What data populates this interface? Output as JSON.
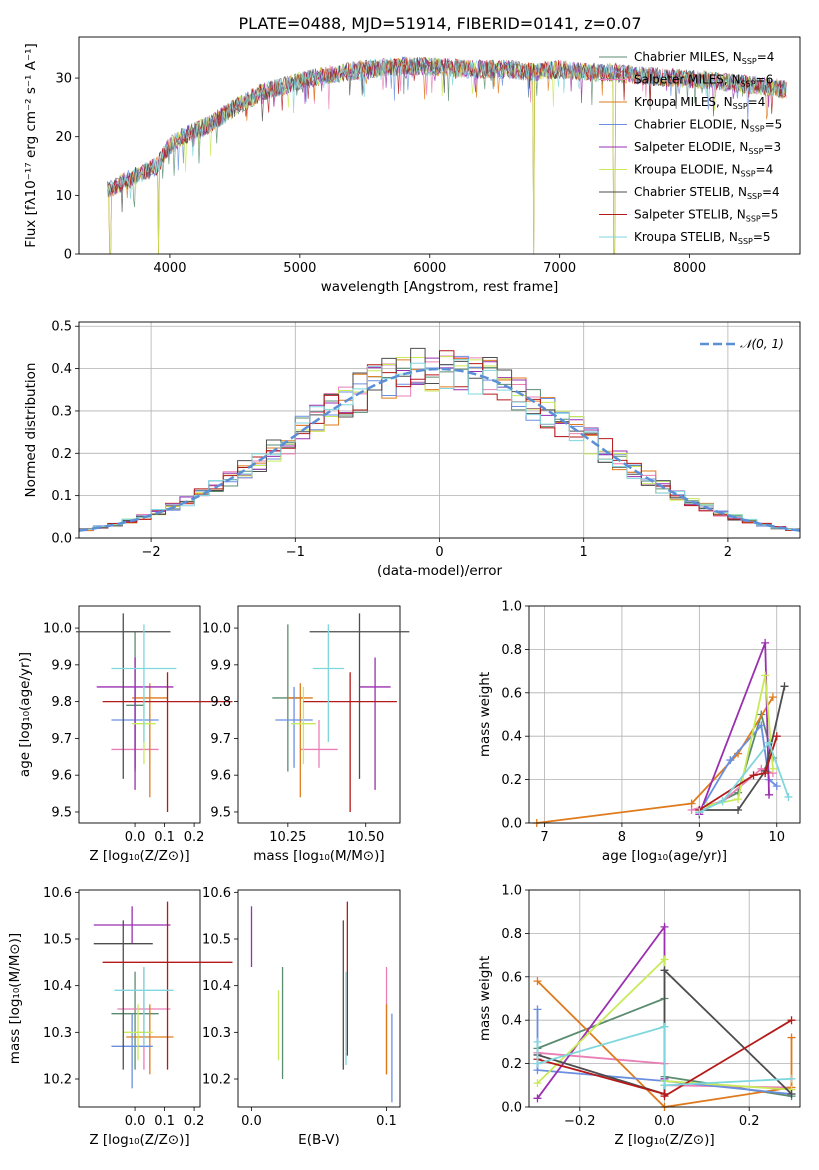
{
  "figure_title": "PLATE=0488, MJD=51914, FIBERID=0141, z=0.07",
  "colors": {
    "chabrier_miles": "#5b8c6f",
    "salpeter_miles": "#e97fb6",
    "kroupa_miles": "#df7a1c",
    "chabrier_elodie": "#6a8fe0",
    "salpeter_elodie": "#9a2fb0",
    "kroupa_elodie": "#c9ea58",
    "chabrier_stelib": "#4d4d4d",
    "salpeter_stelib": "#b51a1a",
    "kroupa_stelib": "#7fd7dd",
    "normal": "#5b8fd6",
    "grid": "#b0b0b0"
  },
  "chart_data": [
    {
      "id": "spectrum",
      "type": "line",
      "title": "PLATE=0488, MJD=51914, FIBERID=0141, z=0.07",
      "xlabel": "wavelength [Angstrom, rest frame]",
      "ylabel": "Flux [fλ10⁻¹⁷ erg cm⁻² s⁻¹ A⁻¹]",
      "xlim": [
        3300,
        8850
      ],
      "ylim": [
        0,
        37
      ],
      "xticks": [
        4000,
        5000,
        6000,
        7000,
        8000
      ],
      "yticks": [
        0,
        10,
        20,
        30
      ],
      "grid": false,
      "legend_position": "right",
      "legend": [
        "Chabrier MILES, N_SSP=4",
        "Salpeter MILES, N_SSP=6",
        "Kroupa MILES, N_SSP=4",
        "Chabrier ELODIE, N_SSP=5",
        "Salpeter ELODIE, N_SSP=3",
        "Kroupa ELODIE, N_SSP=4",
        "Chabrier STELIB, N_SSP=4",
        "Salpeter STELIB, N_SSP=5",
        "Kroupa STELIB, N_SSP=5"
      ],
      "continuum_x": [
        3520,
        3700,
        3900,
        4000,
        4100,
        4300,
        4500,
        4700,
        5000,
        5200,
        5500,
        5800,
        6000,
        6300,
        6600,
        6800,
        7000,
        7200,
        7400,
        7600,
        7900,
        8200,
        8600,
        8750
      ],
      "continuum_y": [
        11,
        13,
        15,
        18.5,
        20,
        22,
        25,
        27.5,
        29.5,
        30.5,
        31.5,
        32,
        32,
        31.5,
        31.5,
        31,
        31.5,
        31,
        31,
        30.5,
        30,
        29.5,
        28.5,
        28
      ],
      "sharp_drops": [
        {
          "x": 3540,
          "y": 0
        },
        {
          "x": 3910,
          "y": 0
        },
        {
          "x": 6800,
          "y": 0
        },
        {
          "x": 7420,
          "y": 0
        }
      ]
    },
    {
      "id": "residuals",
      "type": "histogram",
      "xlabel": "(data-model)/error",
      "ylabel": "Normed distribution",
      "xlim": [
        -2.5,
        2.5
      ],
      "ylim": [
        0,
        0.51
      ],
      "xticks": [
        -2,
        -1,
        0,
        1,
        2
      ],
      "yticks": [
        0.0,
        0.1,
        0.2,
        0.3,
        0.4,
        0.5
      ],
      "grid": true,
      "legend_position": "top-right",
      "legend": [
        "𝒩(0, 1)"
      ],
      "bin_width": 0.1
    },
    {
      "id": "age-vs-Z",
      "type": "scatter",
      "xlabel": "Z [log₁₀(Z/Z⊙)]",
      "ylabel": "age  [log₁₀(age/yr)]",
      "xlim": [
        -0.19,
        0.22
      ],
      "ylim": [
        9.47,
        10.06
      ],
      "xticks": [
        0.0,
        0.1,
        0.2
      ],
      "yticks": [
        9.5,
        9.6,
        9.7,
        9.8,
        9.9,
        10.0
      ],
      "points": [
        {
          "series": "chabrier_miles",
          "x": 0.0,
          "y": 9.79,
          "xerr": 0.03,
          "yerr": [
            0.18,
            0.2
          ]
        },
        {
          "series": "salpeter_miles",
          "x": 0.0,
          "y": 9.67,
          "xerr": 0.08,
          "yerr": [
            0.05,
            0.08
          ]
        },
        {
          "series": "kroupa_miles",
          "x": 0.05,
          "y": 9.81,
          "xerr": 0.06,
          "yerr": [
            0.27,
            0.04
          ]
        },
        {
          "series": "chabrier_elodie",
          "x": 0.0,
          "y": 9.75,
          "xerr": 0.08,
          "yerr": [
            0.13,
            0.09
          ]
        },
        {
          "series": "salpeter_elodie",
          "x": 0.0,
          "y": 9.84,
          "xerr": 0.13,
          "yerr": [
            0.28,
            0.08
          ]
        },
        {
          "series": "kroupa_elodie",
          "x": 0.03,
          "y": 9.74,
          "xerr": 0.04,
          "yerr": [
            0.11,
            0.1
          ]
        },
        {
          "series": "chabrier_stelib",
          "x": -0.04,
          "y": 9.99,
          "xerr": 0.16,
          "yerr": [
            0.4,
            0.05
          ]
        },
        {
          "series": "salpeter_stelib",
          "x": 0.11,
          "y": 9.8,
          "xerr": 0.22,
          "yerr": [
            0.3,
            0.08
          ]
        },
        {
          "series": "kroupa_stelib",
          "x": 0.03,
          "y": 9.89,
          "xerr": 0.11,
          "yerr": [
            0.2,
            0.12
          ]
        }
      ]
    },
    {
      "id": "age-vs-mass",
      "type": "scatter",
      "xlabel": "mass [log₁₀(M/M⊙)]",
      "ylabel": "",
      "xlim": [
        10.09,
        10.61
      ],
      "ylim": [
        9.47,
        10.06
      ],
      "xticks": [
        10.25,
        10.5
      ],
      "yticks": [
        9.5,
        9.6,
        9.7,
        9.8,
        9.9,
        10.0
      ],
      "points": [
        {
          "series": "chabrier_miles",
          "x": 10.25,
          "y": 9.81,
          "xerr": 0.05,
          "yerr": [
            0.2,
            0.2
          ]
        },
        {
          "series": "salpeter_miles",
          "x": 10.35,
          "y": 9.67,
          "xerr": 0.06,
          "yerr": [
            0.05,
            0.08
          ]
        },
        {
          "series": "kroupa_miles",
          "x": 10.29,
          "y": 9.81,
          "xerr": 0.04,
          "yerr": [
            0.27,
            0.04
          ]
        },
        {
          "series": "chabrier_elodie",
          "x": 10.27,
          "y": 9.75,
          "xerr": 0.06,
          "yerr": [
            0.13,
            0.09
          ]
        },
        {
          "series": "salpeter_elodie",
          "x": 10.53,
          "y": 9.84,
          "xerr": 0.05,
          "yerr": [
            0.28,
            0.08
          ]
        },
        {
          "series": "kroupa_elodie",
          "x": 10.3,
          "y": 9.74,
          "xerr": 0.04,
          "yerr": [
            0.11,
            0.1
          ]
        },
        {
          "series": "chabrier_stelib",
          "x": 10.48,
          "y": 9.99,
          "xerr": 0.16,
          "yerr": [
            0.4,
            0.05
          ]
        },
        {
          "series": "salpeter_stelib",
          "x": 10.45,
          "y": 9.8,
          "xerr": 0.15,
          "yerr": [
            0.3,
            0.08
          ]
        },
        {
          "series": "kroupa_stelib",
          "x": 10.38,
          "y": 9.89,
          "xerr": 0.05,
          "yerr": [
            0.2,
            0.12
          ]
        }
      ]
    },
    {
      "id": "mass-weight-vs-age",
      "type": "line",
      "xlabel": "age  [log₁₀(age/yr)]",
      "ylabel": "mass weight",
      "xlim": [
        6.8,
        10.3
      ],
      "ylim": [
        0,
        1
      ],
      "xticks": [
        7,
        8,
        9,
        10
      ],
      "yticks": [
        0.0,
        0.2,
        0.4,
        0.6,
        0.8,
        1.0
      ],
      "grid": true,
      "series": [
        {
          "key": "chabrier_miles",
          "x": [
            9.0,
            9.5,
            9.8,
            9.95
          ],
          "y": [
            0.05,
            0.14,
            0.5,
            0.3
          ]
        },
        {
          "key": "salpeter_miles",
          "x": [
            8.9,
            9.3,
            9.8,
            9.95
          ],
          "y": [
            0.06,
            0.1,
            0.25,
            0.23
          ]
        },
        {
          "key": "kroupa_miles",
          "x": [
            6.9,
            8.9,
            9.5,
            9.95
          ],
          "y": [
            0.0,
            0.09,
            0.32,
            0.58
          ]
        },
        {
          "key": "chabrier_elodie",
          "x": [
            9.0,
            9.4,
            9.8,
            9.9,
            10.0
          ],
          "y": [
            0.05,
            0.29,
            0.45,
            0.2,
            0.17
          ]
        },
        {
          "key": "salpeter_elodie",
          "x": [
            9.0,
            9.85,
            9.9
          ],
          "y": [
            0.04,
            0.83,
            0.13
          ]
        },
        {
          "key": "kroupa_elodie",
          "x": [
            9.1,
            9.5,
            9.85,
            9.95
          ],
          "y": [
            0.08,
            0.11,
            0.68,
            0.25
          ]
        },
        {
          "key": "chabrier_stelib",
          "x": [
            9.0,
            9.5,
            9.85,
            10.1
          ],
          "y": [
            0.06,
            0.06,
            0.24,
            0.63
          ]
        },
        {
          "key": "salpeter_stelib",
          "x": [
            9.0,
            9.7,
            9.85,
            10.0
          ],
          "y": [
            0.06,
            0.22,
            0.23,
            0.4
          ]
        },
        {
          "key": "kroupa_stelib",
          "x": [
            9.0,
            9.3,
            9.9,
            10.15
          ],
          "y": [
            0.05,
            0.1,
            0.37,
            0.12
          ]
        }
      ]
    },
    {
      "id": "mass-vs-Z",
      "type": "scatter",
      "xlabel": "Z [log₁₀(Z/Z⊙)]",
      "ylabel": "mass [log₁₀(M/M⊙)]",
      "xlim": [
        -0.19,
        0.22
      ],
      "ylim": [
        10.14,
        10.605
      ],
      "xticks": [
        0.0,
        0.1,
        0.2
      ],
      "yticks": [
        10.2,
        10.3,
        10.4,
        10.5,
        10.6
      ],
      "points": [
        {
          "series": "chabrier_miles",
          "x": 0.0,
          "y": 10.34,
          "xerr": 0.08,
          "yerr": [
            0.12,
            0.09
          ]
        },
        {
          "series": "salpeter_miles",
          "x": 0.03,
          "y": 10.35,
          "xerr": 0.09,
          "yerr": [
            0.13,
            0.09
          ]
        },
        {
          "series": "kroupa_miles",
          "x": 0.05,
          "y": 10.29,
          "xerr": 0.08,
          "yerr": [
            0.08,
            0.07
          ]
        },
        {
          "series": "chabrier_elodie",
          "x": -0.01,
          "y": 10.27,
          "xerr": 0.07,
          "yerr": [
            0.09,
            0.07
          ]
        },
        {
          "series": "salpeter_elodie",
          "x": -0.01,
          "y": 10.53,
          "xerr": 0.13,
          "yerr": [
            0.04,
            0.04
          ]
        },
        {
          "series": "kroupa_elodie",
          "x": 0.01,
          "y": 10.3,
          "xerr": 0.05,
          "yerr": [
            0.06,
            0.06
          ]
        },
        {
          "series": "chabrier_stelib",
          "x": -0.04,
          "y": 10.49,
          "xerr": 0.1,
          "yerr": [
            0.27,
            0.05
          ]
        },
        {
          "series": "salpeter_stelib",
          "x": 0.11,
          "y": 10.45,
          "xerr": 0.22,
          "yerr": [
            0.23,
            0.13
          ]
        },
        {
          "series": "kroupa_stelib",
          "x": 0.03,
          "y": 10.39,
          "xerr": 0.1,
          "yerr": [
            0.12,
            0.05
          ]
        }
      ]
    },
    {
      "id": "mass-vs-ebv",
      "type": "scatter",
      "xlabel": "E(B-V)",
      "ylabel": "",
      "xlim": [
        -0.01,
        0.11
      ],
      "ylim": [
        10.14,
        10.605
      ],
      "xticks": [
        0.0,
        0.1
      ],
      "yticks": [
        10.2,
        10.3,
        10.4,
        10.5,
        10.6
      ],
      "points": [
        {
          "series": "chabrier_miles",
          "x": 0.023,
          "y": 10.32,
          "yerr": [
            0.12,
            0.12
          ]
        },
        {
          "series": "salpeter_miles",
          "x": 0.1,
          "y": 10.31,
          "yerr": [
            0.1,
            0.13
          ]
        },
        {
          "series": "kroupa_miles",
          "x": 0.1,
          "y": 10.28,
          "yerr": [
            0.07,
            0.08
          ]
        },
        {
          "series": "chabrier_elodie",
          "x": 0.104,
          "y": 10.25,
          "yerr": [
            0.1,
            0.09
          ]
        },
        {
          "series": "salpeter_elodie",
          "x": 0.0,
          "y": 10.5,
          "yerr": [
            0.06,
            0.07
          ]
        },
        {
          "series": "kroupa_elodie",
          "x": 0.02,
          "y": 10.32,
          "yerr": [
            0.08,
            0.07
          ]
        },
        {
          "series": "chabrier_stelib",
          "x": 0.068,
          "y": 10.38,
          "yerr": [
            0.16,
            0.16
          ]
        },
        {
          "series": "salpeter_stelib",
          "x": 0.071,
          "y": 10.42,
          "yerr": [
            0.17,
            0.16
          ]
        },
        {
          "series": "kroupa_stelib",
          "x": 0.07,
          "y": 10.37,
          "yerr": [
            0.14,
            0.06
          ]
        }
      ]
    },
    {
      "id": "mass-weight-vs-Z",
      "type": "line",
      "xlabel": "Z [log₁₀(Z/Z⊙)]",
      "ylabel": "mass weight",
      "xlim": [
        -0.32,
        0.32
      ],
      "ylim": [
        0,
        1
      ],
      "xticks": [
        -0.2,
        0.0,
        0.2
      ],
      "yticks": [
        0.0,
        0.2,
        0.4,
        0.6,
        0.8,
        1.0
      ],
      "grid": true,
      "series": [
        {
          "key": "chabrier_miles",
          "x": [
            -0.3,
            0.0,
            0.0,
            0.3
          ],
          "y": [
            0.27,
            0.5,
            0.14,
            0.05
          ]
        },
        {
          "key": "salpeter_miles",
          "x": [
            -0.3,
            0.0,
            0.0,
            0.3
          ],
          "y": [
            0.25,
            0.2,
            0.1,
            0.09
          ]
        },
        {
          "key": "kroupa_miles",
          "x": [
            -0.3,
            0.0,
            0.3,
            0.3
          ],
          "y": [
            0.58,
            0.0,
            0.09,
            0.32
          ]
        },
        {
          "key": "chabrier_elodie",
          "x": [
            -0.3,
            -0.3,
            0.0,
            0.3
          ],
          "y": [
            0.45,
            0.17,
            0.12,
            0.06
          ]
        },
        {
          "key": "salpeter_elodie",
          "x": [
            -0.3,
            0.0,
            0.0
          ],
          "y": [
            0.04,
            0.83,
            0.13
          ]
        },
        {
          "key": "kroupa_elodie",
          "x": [
            -0.3,
            0.0,
            0.0,
            0.3
          ],
          "y": [
            0.11,
            0.68,
            0.12,
            0.08
          ]
        },
        {
          "key": "chabrier_stelib",
          "x": [
            -0.3,
            0.0,
            0.0,
            0.3
          ],
          "y": [
            0.24,
            0.06,
            0.63,
            0.06
          ]
        },
        {
          "key": "salpeter_stelib",
          "x": [
            -0.3,
            0.0,
            0.0,
            0.3
          ],
          "y": [
            0.22,
            0.06,
            0.05,
            0.4
          ]
        },
        {
          "key": "kroupa_stelib",
          "x": [
            -0.3,
            -0.3,
            0.0,
            0.0,
            0.3
          ],
          "y": [
            0.3,
            0.2,
            0.37,
            0.1,
            0.13
          ]
        }
      ]
    }
  ]
}
